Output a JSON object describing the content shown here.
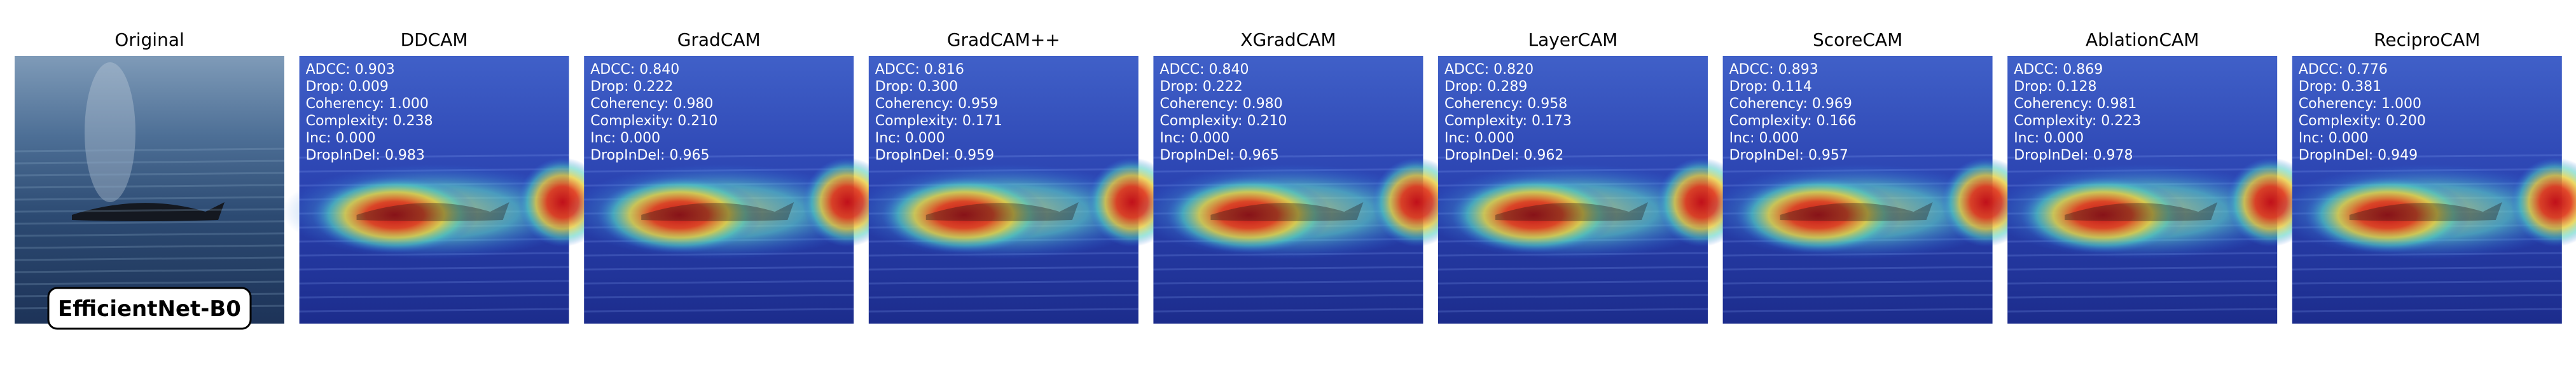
{
  "panels": [
    {
      "title": "Original",
      "label": "EfficientNet-B0"
    },
    {
      "title": "DDCAM",
      "metrics": [
        "ADCC: 0.903",
        "Drop: 0.009",
        "Coherency: 1.000",
        "Complexity: 0.238",
        "Inc: 0.000",
        "DropInDel: 0.983"
      ]
    },
    {
      "title": "GradCAM",
      "metrics": [
        "ADCC: 0.840",
        "Drop: 0.222",
        "Coherency: 0.980",
        "Complexity: 0.210",
        "Inc: 0.000",
        "DropInDel: 0.965"
      ]
    },
    {
      "title": "GradCAM++",
      "metrics": [
        "ADCC: 0.816",
        "Drop: 0.300",
        "Coherency: 0.959",
        "Complexity: 0.171",
        "Inc: 0.000",
        "DropInDel: 0.959"
      ]
    },
    {
      "title": "XGradCAM",
      "metrics": [
        "ADCC: 0.840",
        "Drop: 0.222",
        "Coherency: 0.980",
        "Complexity: 0.210",
        "Inc: 0.000",
        "DropInDel: 0.965"
      ]
    },
    {
      "title": "LayerCAM",
      "metrics": [
        "ADCC: 0.820",
        "Drop: 0.289",
        "Coherency: 0.958",
        "Complexity: 0.173",
        "Inc: 0.000",
        "DropInDel: 0.962"
      ]
    },
    {
      "title": "ScoreCAM",
      "metrics": [
        "ADCC: 0.893",
        "Drop: 0.114",
        "Coherency: 0.969",
        "Complexity: 0.166",
        "Inc: 0.000",
        "DropInDel: 0.957"
      ]
    },
    {
      "title": "AblationCAM",
      "metrics": [
        "ADCC: 0.869",
        "Drop: 0.128",
        "Coherency: 0.981",
        "Complexity: 0.223",
        "Inc: 0.000",
        "DropInDel: 0.978"
      ]
    },
    {
      "title": "ReciproCAM",
      "metrics": [
        "ADCC: 0.776",
        "Drop: 0.381",
        "Coherency: 1.000",
        "Complexity: 0.200",
        "Inc: 0.000",
        "DropInDel: 0.949"
      ]
    }
  ]
}
